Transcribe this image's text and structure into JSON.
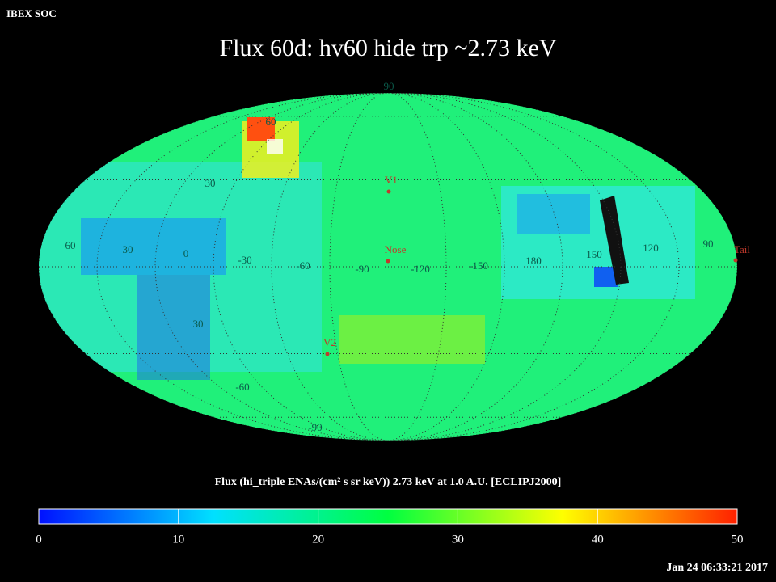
{
  "header": "IBEX SOC",
  "title": "Flux   60d: hv60 hide trp ~2.73 keV",
  "longitude_labels": [
    "60",
    "30",
    "0",
    "-30",
    "-60",
    "-90",
    "-120",
    "-150",
    "180",
    "150",
    "120",
    "90"
  ],
  "latitude_labels": [
    "90",
    "60",
    "30",
    "30",
    "-60",
    "-90"
  ],
  "markers": [
    "V1",
    "Nose",
    "V2",
    "Tail"
  ],
  "colorbar": {
    "label": "Flux (hi_triple ENAs/(cm² s sr keV))  2.73 keV at 1.0 A.U. [ECLIPJ2000]",
    "range": [
      0,
      50
    ],
    "ticks": [
      0,
      10,
      20,
      30,
      40,
      50
    ],
    "colors": [
      "#0010ff",
      "#00e0ff",
      "#00ff40",
      "#ffff00",
      "#ff2000"
    ]
  },
  "timestamp": "Jan 24 06:33:21 2017"
}
